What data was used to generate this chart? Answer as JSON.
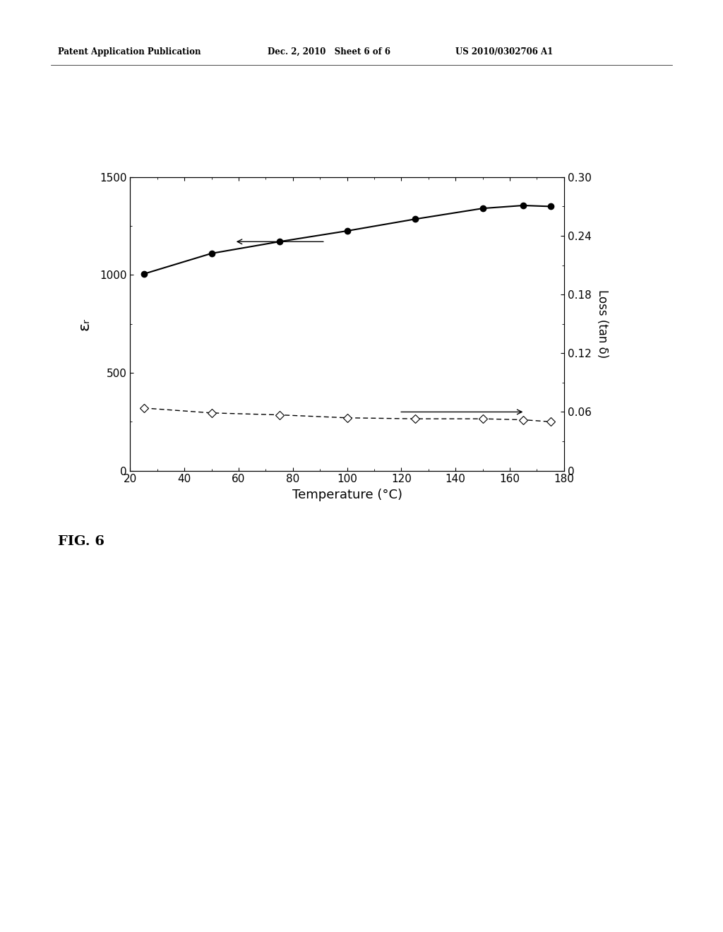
{
  "title_header_left": "Patent Application Publication",
  "title_header_mid": "Dec. 2, 2010   Sheet 6 of 6",
  "title_header_right": "US 2010/0302706 A1",
  "fig_label": "FIG. 6",
  "xlabel": "Temperature (°C)",
  "ylabel_left": "εᵣ",
  "ylabel_right": "Loss (tan δ)",
  "temp_x": [
    25,
    50,
    75,
    100,
    125,
    150,
    165,
    175
  ],
  "epsilon_y": [
    1005,
    1110,
    1170,
    1225,
    1285,
    1340,
    1355,
    1350
  ],
  "loss_y": [
    0.064,
    0.059,
    0.057,
    0.054,
    0.053,
    0.053,
    0.052,
    0.05
  ],
  "xlim": [
    20,
    180
  ],
  "ylim_left": [
    0,
    1500
  ],
  "ylim_right": [
    0,
    0.3
  ],
  "xticks": [
    20,
    40,
    60,
    80,
    100,
    120,
    140,
    160,
    180
  ],
  "yticks_left": [
    0,
    500,
    1000,
    1500
  ],
  "yticks_right": [
    0,
    0.06,
    0.12,
    0.18,
    0.24,
    0.3
  ],
  "background_color": "#ffffff",
  "line1_color": "#000000",
  "line2_color": "#555555"
}
